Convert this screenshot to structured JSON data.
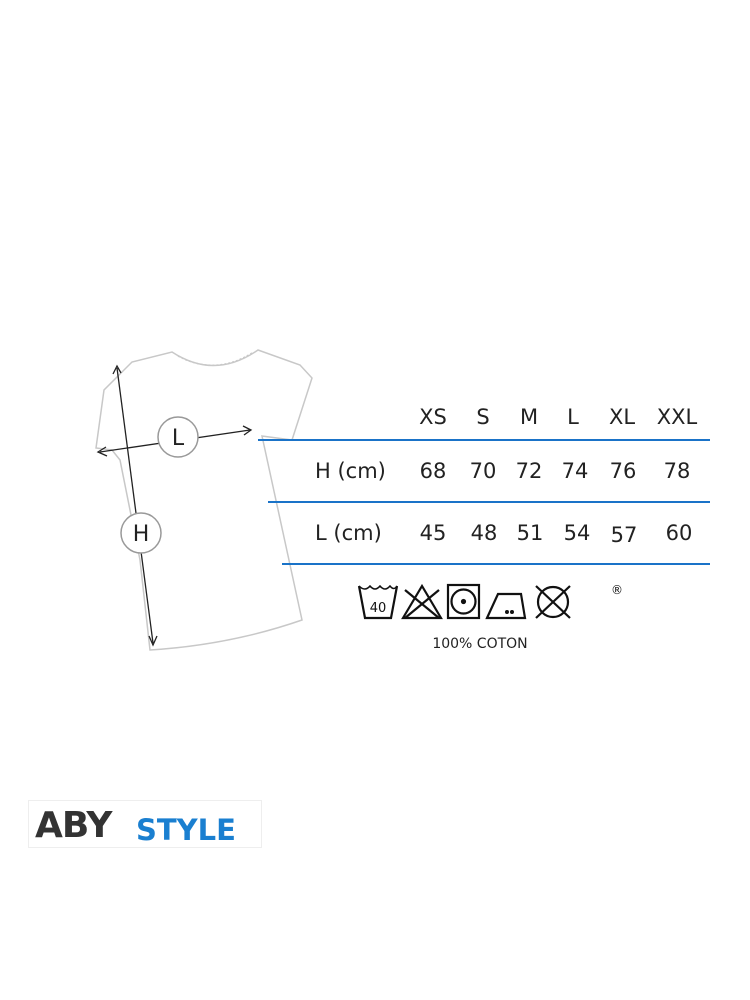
{
  "size_chart": {
    "sizes": [
      "XS",
      "S",
      "M",
      "L",
      "XL",
      "XXL"
    ],
    "rows": [
      {
        "label": "H (cm)",
        "values": [
          "68",
          "70",
          "72",
          "74",
          "76",
          "78"
        ]
      },
      {
        "label": "L (cm)",
        "values": [
          "45",
          "48",
          "51",
          "54",
          "57",
          "60"
        ]
      }
    ],
    "line_color": "#1a73c8"
  },
  "diagram": {
    "width_marker": "L",
    "height_marker": "H"
  },
  "care": {
    "icons": [
      "wash-40-icon",
      "no-bleach-icon",
      "tumble-dry-icon",
      "iron-low-icon",
      "no-dry-clean-icon",
      "registered-icon"
    ],
    "wash_temp": "40",
    "registered": "®",
    "material": "100% COTON"
  },
  "brand": {
    "part1": "ABY",
    "part2": "STYLE",
    "color1": "#333333",
    "color2": "#1a7fd0"
  }
}
